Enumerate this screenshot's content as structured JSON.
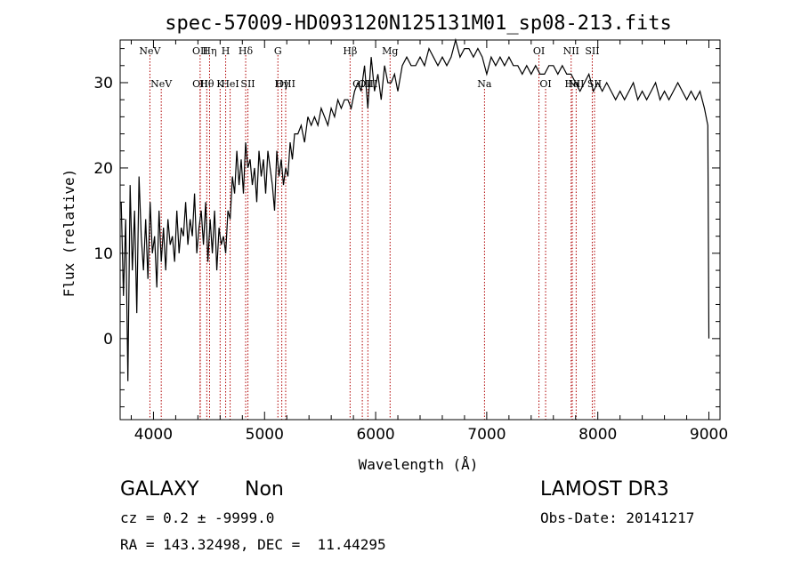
{
  "chart_data": {
    "type": "line",
    "title": "spec-57009-HD093120N125131M01_sp08-213.fits",
    "xlabel": "Wavelength (Å)",
    "ylabel": "Flux (relative)",
    "xlim": [
      3700,
      9100
    ],
    "ylim": [
      -9.5,
      35
    ],
    "xticks": [
      4000,
      5000,
      6000,
      7000,
      8000,
      9000
    ],
    "yticks": [
      0,
      10,
      20,
      30
    ],
    "grid": false,
    "line_color": "#000000",
    "marker_color": "#b00000",
    "series": [
      {
        "x": [
          3710,
          3730,
          3750,
          3770,
          3790,
          3810,
          3830,
          3850,
          3870,
          3890,
          3910,
          3930,
          3950,
          3970,
          3990,
          4010,
          4030,
          4050,
          4070,
          4090,
          4110,
          4130,
          4150,
          4170,
          4190,
          4210,
          4230,
          4250,
          4270,
          4290,
          4310,
          4330,
          4350,
          4370,
          4390,
          4410,
          4430,
          4450,
          4470,
          4490,
          4510,
          4530,
          4550,
          4570,
          4590,
          4610,
          4630,
          4650,
          4670,
          4690,
          4710,
          4730,
          4750,
          4770,
          4790,
          4810,
          4830,
          4850,
          4870,
          4890,
          4910,
          4930,
          4950,
          4970,
          4990,
          5010,
          5030,
          5050,
          5070,
          5090,
          5110,
          5130,
          5150,
          5170,
          5190,
          5210,
          5230,
          5250,
          5270,
          5300,
          5330,
          5360,
          5390,
          5420,
          5450,
          5480,
          5510,
          5540,
          5570,
          5600,
          5630,
          5660,
          5690,
          5720,
          5750,
          5780,
          5810,
          5840,
          5870,
          5900,
          5930,
          5960,
          5990,
          6020,
          6050,
          6080,
          6110,
          6140,
          6170,
          6200,
          6240,
          6280,
          6320,
          6360,
          6400,
          6440,
          6480,
          6520,
          6560,
          6600,
          6640,
          6680,
          6720,
          6760,
          6800,
          6840,
          6880,
          6920,
          6960,
          7000,
          7040,
          7080,
          7120,
          7160,
          7200,
          7240,
          7280,
          7320,
          7360,
          7400,
          7440,
          7480,
          7520,
          7560,
          7600,
          7640,
          7680,
          7720,
          7760,
          7800,
          7840,
          7880,
          7920,
          7960,
          8000,
          8040,
          8080,
          8120,
          8160,
          8200,
          8240,
          8280,
          8320,
          8360,
          8400,
          8440,
          8480,
          8520,
          8560,
          8600,
          8640,
          8680,
          8720,
          8760,
          8800,
          8840,
          8880,
          8920,
          8960,
          8990,
          9000
        ],
        "values": [
          16,
          5,
          14,
          -5,
          18,
          8,
          15,
          3,
          19,
          12,
          8,
          14,
          7,
          16,
          10,
          12,
          6,
          15,
          9,
          13,
          8,
          14,
          11,
          12,
          9,
          15,
          10,
          13,
          12,
          16,
          11,
          14,
          12,
          17,
          10,
          13,
          15,
          11,
          16,
          9,
          14,
          10,
          15,
          8,
          13,
          11,
          12,
          10,
          15,
          14,
          19,
          17,
          22,
          18,
          21,
          17,
          23,
          20,
          21,
          18,
          20,
          16,
          22,
          19,
          21,
          17,
          22,
          20,
          18,
          15,
          22,
          19,
          21,
          18,
          20,
          19,
          23,
          21,
          24,
          24,
          25,
          23,
          26,
          25,
          26,
          25,
          27,
          26,
          25,
          27,
          26,
          28,
          27,
          28,
          28,
          27,
          29,
          30,
          29,
          32,
          27,
          33,
          29,
          31,
          28,
          32,
          30,
          30,
          31,
          29,
          32,
          33,
          32,
          32,
          33,
          32,
          34,
          33,
          32,
          33,
          32,
          33,
          35,
          33,
          34,
          34,
          33,
          34,
          33,
          31,
          33,
          32,
          33,
          32,
          33,
          32,
          32,
          31,
          32,
          31,
          32,
          31,
          31,
          32,
          32,
          31,
          32,
          31,
          31,
          30,
          29,
          30,
          31,
          29,
          30,
          29,
          30,
          29,
          28,
          29,
          28,
          29,
          30,
          28,
          29,
          28,
          29,
          30,
          28,
          29,
          28,
          29,
          30,
          29,
          28,
          29,
          28,
          29,
          27,
          25,
          0
        ]
      }
    ],
    "lines": [
      {
        "upper": "NeV",
        "lower": "NeV",
        "x": [
          3968,
          4070
        ]
      },
      {
        "upper": "OII",
        "lower": "OII",
        "x": [
          4420,
          4421
        ]
      },
      {
        "upper": "Hη",
        "lower": "Hθ",
        "x": [
          4505,
          4480
        ]
      },
      {
        "upper": "H",
        "lower": "K",
        "x": [
          4650,
          4600
        ]
      },
      {
        "upper": "Hδ",
        "lower": "HeI",
        "x": [
          4830,
          4690
        ]
      },
      {
        "upper": "",
        "lower": "SII",
        "x": [
          0,
          4850
        ]
      },
      {
        "upper": "G",
        "lower": "OIII",
        "x": [
          5120,
          5190
        ]
      },
      {
        "upper": "",
        "lower": "Hγ",
        "x": [
          0,
          5155
        ]
      },
      {
        "upper": "Hβ",
        "lower": "OIII",
        "x": [
          5770,
          5880
        ]
      },
      {
        "upper": "",
        "lower": "OIII",
        "x": [
          0,
          5930
        ]
      },
      {
        "upper": "Mg",
        "lower": "",
        "x": [
          6130,
          0
        ]
      },
      {
        "upper": "",
        "lower": "Na",
        "x": [
          0,
          6980
        ]
      },
      {
        "upper": "OI",
        "lower": "OI",
        "x": [
          7470,
          7530
        ]
      },
      {
        "upper": "NII",
        "lower": "Hα",
        "x": [
          7760,
          7770
        ]
      },
      {
        "upper": "",
        "lower": "NII",
        "x": [
          0,
          7805
        ]
      },
      {
        "upper": "SII",
        "lower": "SII",
        "x": [
          7950,
          7970
        ]
      }
    ]
  },
  "info": {
    "class_label": "GALAXY",
    "subclass_label": "Non",
    "survey": "LAMOST DR3",
    "cz": "cz = 0.2 ± -9999.0",
    "obs_date": "Obs-Date: 20141217",
    "radec": "RA = 143.32498, DEC =  11.44295"
  }
}
